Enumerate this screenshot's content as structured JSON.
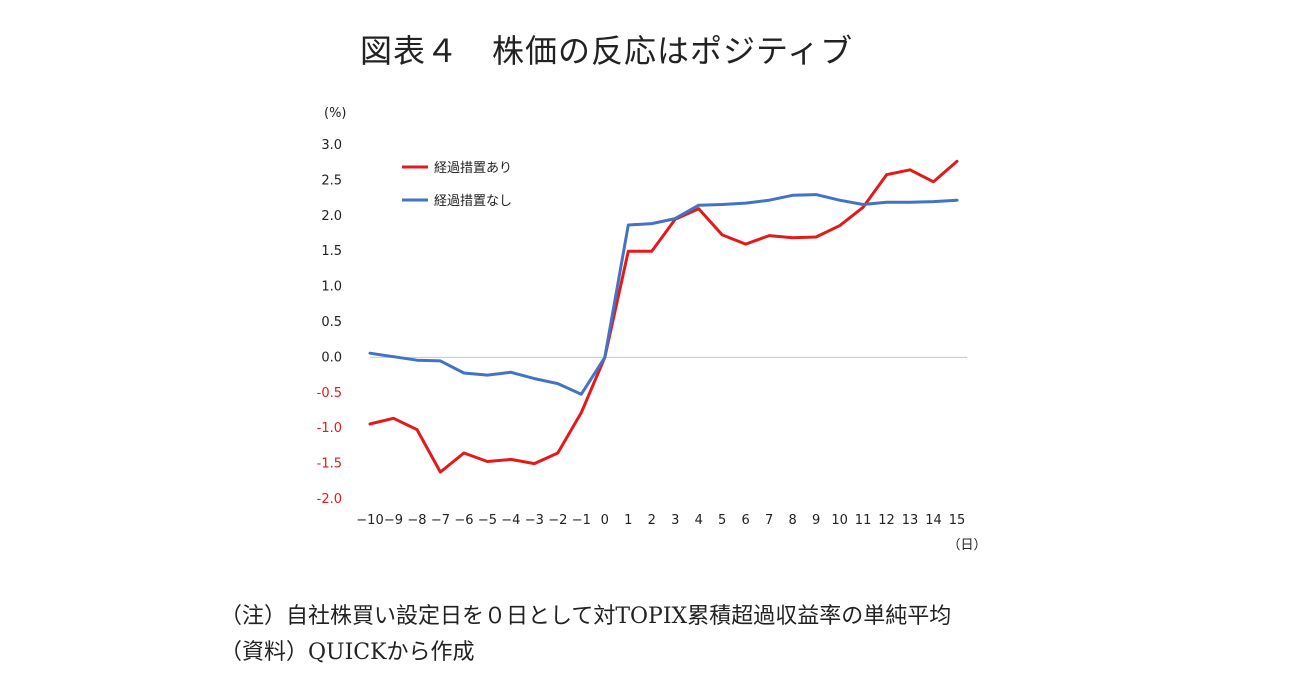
{
  "title": "図表４　株価の反応はポジティブ",
  "notes": {
    "note1": "（注）自社株買い設定日を０日として対TOPIX累積超過収益率の単純平均",
    "note2": "（資料）QUICKから作成"
  },
  "chart_data": {
    "type": "line",
    "y_unit_label": "(%)",
    "x_unit_label": "（日）",
    "ylim": [
      -2.0,
      3.0
    ],
    "y_ticks": [
      "3.0",
      "2.5",
      "2.0",
      "1.5",
      "1.0",
      "0.5",
      "0.0",
      "-0.5",
      "-1.0",
      "-1.5",
      "-2.0"
    ],
    "y_tick_values": [
      3.0,
      2.5,
      2.0,
      1.5,
      1.0,
      0.5,
      0.0,
      -0.5,
      -1.0,
      -1.5,
      -2.0
    ],
    "x": [
      -10,
      -9,
      -8,
      -7,
      -6,
      -5,
      -4,
      -3,
      -2,
      -1,
      0,
      1,
      2,
      3,
      4,
      5,
      6,
      7,
      8,
      9,
      10,
      11,
      12,
      13,
      14,
      15
    ],
    "x_tick_labels": [
      "−10",
      "−9",
      "−8",
      "−7",
      "−6",
      "−5",
      "−4",
      "−3",
      "−2",
      "−1",
      "0",
      "1",
      "2",
      "3",
      "4",
      "5",
      "6",
      "7",
      "8",
      "9",
      "10",
      "11",
      "12",
      "13",
      "14",
      "15"
    ],
    "grid": false,
    "zero_line": true,
    "legend_position": "top-left",
    "series": [
      {
        "name": "経過措置あり",
        "color": "#e31a1c",
        "values": [
          -0.94,
          -0.86,
          -1.02,
          -1.62,
          -1.35,
          -1.47,
          -1.44,
          -1.5,
          -1.35,
          -0.78,
          0.0,
          1.5,
          1.5,
          1.95,
          2.1,
          1.73,
          1.6,
          1.72,
          1.69,
          1.7,
          1.86,
          2.12,
          2.58,
          2.65,
          2.48,
          2.77
        ]
      },
      {
        "name": "経過措置なし",
        "color": "#4472c4",
        "values": [
          0.06,
          0.01,
          -0.04,
          -0.05,
          -0.22,
          -0.25,
          -0.21,
          -0.3,
          -0.37,
          -0.52,
          0.0,
          1.87,
          1.89,
          1.96,
          2.15,
          2.16,
          2.18,
          2.22,
          2.29,
          2.3,
          2.22,
          2.16,
          2.19,
          2.19,
          2.2,
          2.22
        ]
      }
    ]
  }
}
